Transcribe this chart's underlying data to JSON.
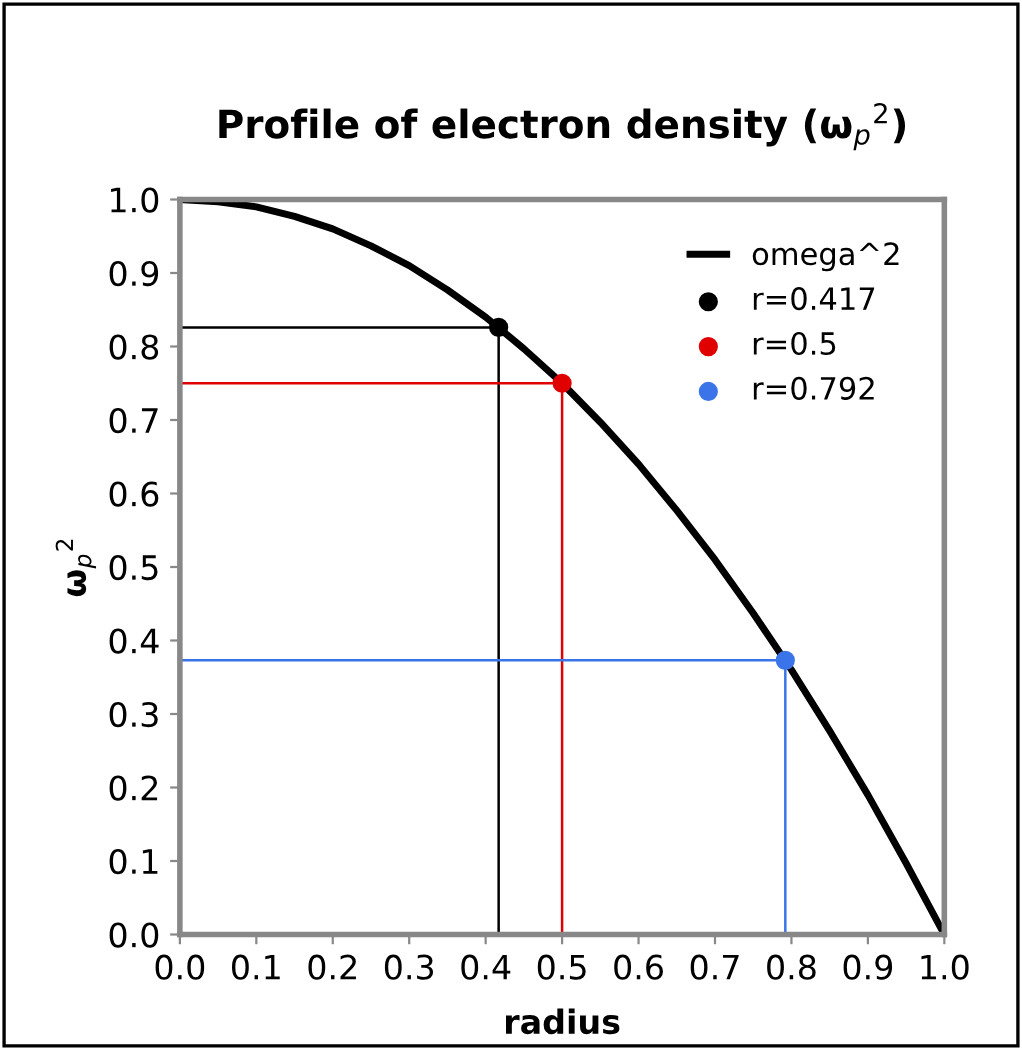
{
  "chart_data": {
    "type": "line",
    "title": "Profile of electron density (ω$_{p}$$^{2}$)",
    "xlabel": "radius",
    "ylabel": "ω$_{p}$$^{2}$",
    "xlim": [
      0,
      1
    ],
    "ylim": [
      0,
      1
    ],
    "xticks": [
      {
        "value": 0,
        "label": "0.0"
      },
      0.1,
      0.2,
      0.3,
      0.4,
      0.5,
      0.6,
      0.7,
      0.8,
      0.9,
      {
        "value": 1,
        "label": "1.0"
      }
    ],
    "yticks": [
      {
        "value": 0,
        "label": "0.0"
      },
      0.1,
      0.2,
      0.3,
      0.4,
      0.5,
      0.6,
      0.7,
      0.8,
      0.9,
      {
        "value": 1,
        "label": "1.0"
      }
    ],
    "grid": false,
    "legend": "top right",
    "series": [
      {
        "name": "omega^2",
        "color": "#000000",
        "x": [
          0,
          0.05,
          0.1,
          0.15,
          0.2,
          0.25,
          0.3,
          0.35,
          0.4,
          0.45,
          0.5,
          0.55,
          0.6,
          0.65,
          0.7,
          0.75,
          0.8,
          0.85,
          0.9,
          0.95,
          1.0
        ],
        "values": [
          1.0,
          0.997,
          0.99,
          0.977,
          0.96,
          0.937,
          0.91,
          0.877,
          0.84,
          0.797,
          0.75,
          0.697,
          0.64,
          0.577,
          0.51,
          0.437,
          0.36,
          0.277,
          0.19,
          0.097,
          0.0
        ]
      },
      {
        "type": "line",
        "color": "#000000",
        "x": [
          0,
          0.417,
          0.417
        ],
        "values": [
          0.826,
          0.826,
          0
        ]
      },
      {
        "type": "line",
        "color": "#e00000",
        "x": [
          0,
          0.5,
          0.5
        ],
        "values": [
          0.75,
          0.75,
          0
        ]
      },
      {
        "type": "line",
        "color": "#3b74e8",
        "x": [
          0,
          0.792,
          0.792
        ],
        "values": [
          0.373,
          0.373,
          0
        ]
      },
      {
        "name": "r=0.417",
        "type": "scatter",
        "color": "#000000",
        "x": [
          0.417
        ],
        "values": [
          0.826
        ]
      },
      {
        "name": "r=0.5",
        "type": "scatter",
        "color": "#e00000",
        "x": [
          0.5
        ],
        "values": [
          0.75
        ]
      },
      {
        "name": "r=0.792",
        "type": "scatter",
        "color": "#3b74e8",
        "x": [
          0.792
        ],
        "values": [
          0.373
        ]
      }
    ]
  }
}
